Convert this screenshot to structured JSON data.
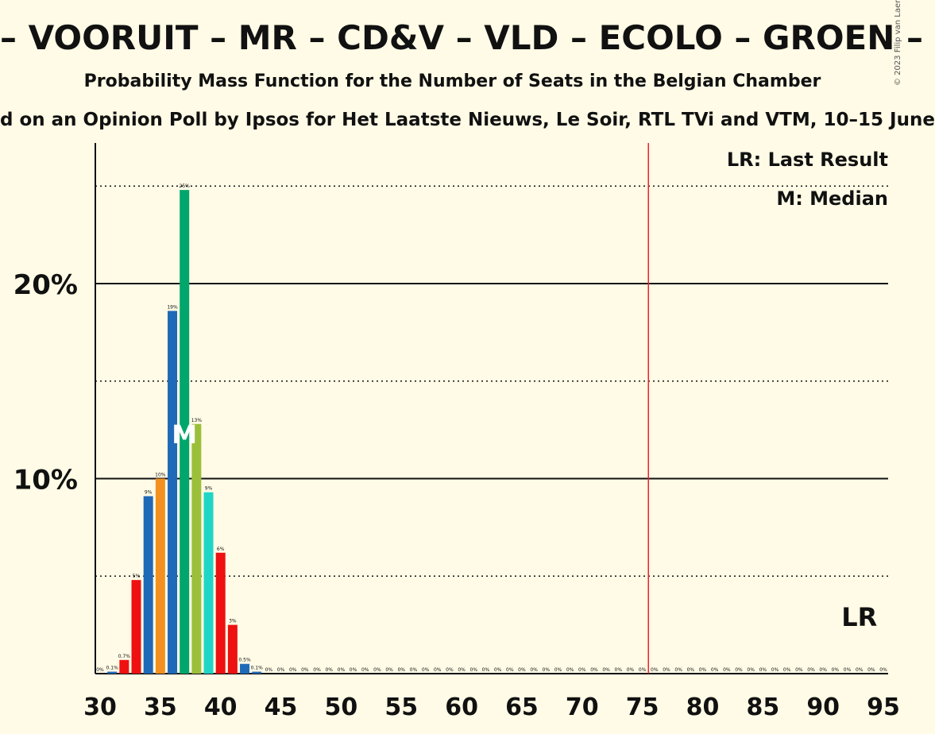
{
  "header": {
    "title": "– VOORUIT – MR – CD&V – VLD – ECOLO – GROEN –",
    "subtitle": "Probability Mass Function for the Number of Seats in the Belgian Chamber",
    "source": "d on an Opinion Poll by Ipsos for Het Laatste Nieuws, Le Soir, RTL TVi and VTM, 10–15 June",
    "copyright": "© 2023 Filip van Laenen"
  },
  "legend": {
    "last_result": "LR: Last Result",
    "median": "M: Median"
  },
  "markers": {
    "median_label": "M",
    "last_result_label": "LR"
  },
  "colors": {
    "background": "#fffbe6",
    "majority_line": "#e8232a",
    "blue": "#1f6ab8",
    "green": "#00a66b",
    "orange": "#f39120",
    "red": "#ee1111",
    "olive": "#9bbf3a",
    "cyan": "#1fd6c6"
  },
  "chart_data": {
    "type": "bar",
    "x": [
      30,
      31,
      32,
      33,
      34,
      35,
      36,
      37,
      38,
      39,
      40,
      41,
      42,
      43,
      44,
      45,
      46,
      47,
      48,
      49,
      50,
      51,
      52,
      53,
      54,
      55,
      56,
      57,
      58,
      59,
      60,
      61,
      62,
      63,
      64,
      65,
      66,
      67,
      68,
      69,
      70,
      71,
      72,
      73,
      74,
      75,
      76,
      77,
      78,
      79,
      80,
      81,
      82,
      83,
      84,
      85,
      86,
      87,
      88,
      89,
      90,
      91,
      92,
      93,
      94,
      95
    ],
    "values": [
      0,
      0.1,
      0.7,
      4.8,
      9.1,
      10,
      18.6,
      24.8,
      12.8,
      9.3,
      6.2,
      2.5,
      0.5,
      0.1,
      0,
      0,
      0,
      0,
      0,
      0,
      0,
      0,
      0,
      0,
      0,
      0,
      0,
      0,
      0,
      0,
      0,
      0,
      0,
      0,
      0,
      0,
      0,
      0,
      0,
      0,
      0,
      0,
      0,
      0,
      0,
      0,
      0,
      0,
      0,
      0,
      0,
      0,
      0,
      0,
      0,
      0,
      0,
      0,
      0,
      0,
      0,
      0,
      0,
      0,
      0,
      0
    ],
    "labels": [
      "0%",
      "0.1%",
      "0.7%",
      "5%",
      "9%",
      "10%",
      "19%",
      "25%",
      "13%",
      "9%",
      "6%",
      "3%",
      "0.5%",
      "0.1%",
      "0%",
      "0%",
      "0%",
      "0%",
      "0%",
      "0%",
      "0%",
      "0%",
      "0%",
      "0%",
      "0%",
      "0%",
      "0%",
      "0%",
      "0%",
      "0%",
      "0%",
      "0%",
      "0%",
      "0%",
      "0%",
      "0%",
      "0%",
      "0%",
      "0%",
      "0%",
      "0%",
      "0%",
      "0%",
      "0%",
      "0%",
      "0%",
      "0%",
      "0%",
      "0%",
      "0%",
      "0%",
      "0%",
      "0%",
      "0%",
      "0%",
      "0%",
      "0%",
      "0%",
      "0%",
      "0%",
      "0%",
      "0%",
      "0%",
      "0%",
      "0%",
      "0%"
    ],
    "bar_colors": [
      "#ee1111",
      "#1f6ab8",
      "#ee1111",
      "#ee1111",
      "#1f6ab8",
      "#f39120",
      "#1f6ab8",
      "#00a66b",
      "#9bbf3a",
      "#1fd6c6",
      "#ee1111",
      "#ee1111",
      "#1f6ab8",
      "#1f6ab8"
    ],
    "x_ticks": [
      30,
      35,
      40,
      45,
      50,
      55,
      60,
      65,
      70,
      75,
      80,
      85,
      90,
      95
    ],
    "x_tick_labels": [
      "30",
      "35",
      "40",
      "45",
      "50",
      "55",
      "60",
      "65",
      "70",
      "75",
      "80",
      "85",
      "90",
      "95"
    ],
    "y_ticks_major": [
      10,
      20
    ],
    "y_tick_labels": [
      "10%",
      "20%"
    ],
    "y_ticks_minor": [
      5,
      15,
      25
    ],
    "xlim": [
      30,
      95
    ],
    "ylim": [
      0,
      27.3
    ],
    "majority_line_x": 76,
    "median_x": 37,
    "last_result_x": 93
  }
}
